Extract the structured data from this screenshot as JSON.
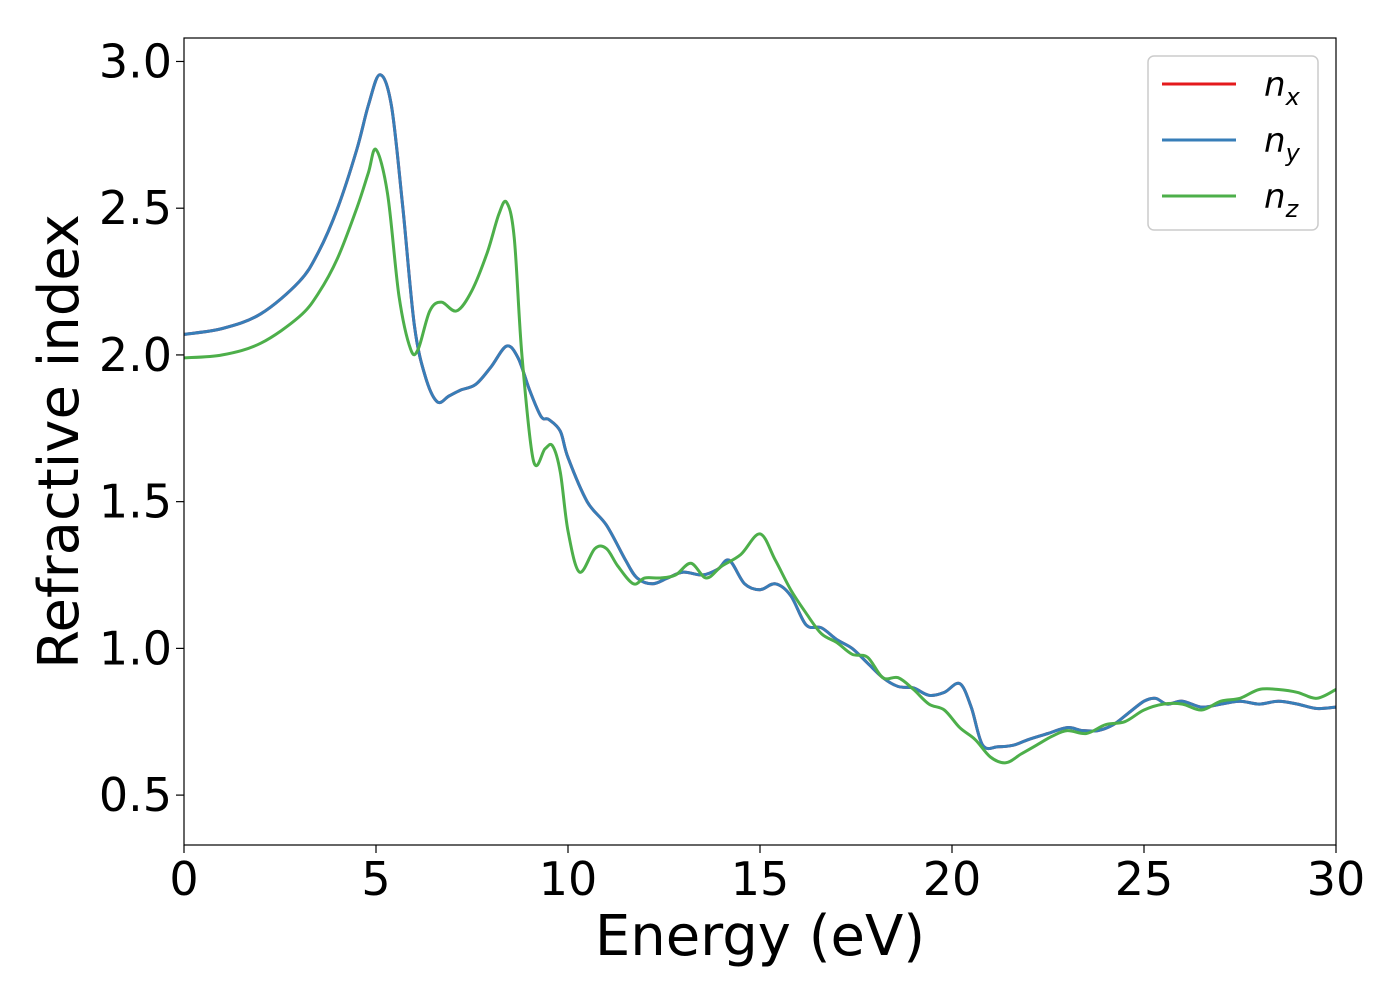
{
  "chart_data": {
    "type": "line",
    "xlabel": "Energy (eV)",
    "ylabel": "Refractive index",
    "xlim": [
      0,
      30
    ],
    "ylim": [
      0.33,
      3.08
    ],
    "xticks": [
      0,
      5,
      10,
      15,
      20,
      25,
      30
    ],
    "xtick_labels": [
      "0",
      "5",
      "10",
      "15",
      "20",
      "25",
      "30"
    ],
    "yticks": [
      0.5,
      1.0,
      1.5,
      2.0,
      2.5,
      3.0
    ],
    "ytick_labels": [
      "0.5",
      "1.0",
      "1.5",
      "2.0",
      "2.5",
      "3.0"
    ],
    "grid": false,
    "legend_position": "top-right",
    "series": [
      {
        "name": "n_x",
        "label_base": "n",
        "label_sub": "x",
        "color": "#e41a1c",
        "x": [
          0,
          1,
          2,
          3,
          3.5,
          4,
          4.5,
          4.8,
          5.1,
          5.4,
          5.7,
          6,
          6.3,
          6.6,
          6.9,
          7.2,
          7.6,
          8,
          8.4,
          8.7,
          9,
          9.3,
          9.5,
          9.8,
          10,
          10.5,
          11,
          11.5,
          11.8,
          12.2,
          12.6,
          13,
          13.5,
          13.9,
          14.2,
          14.6,
          15,
          15.4,
          15.8,
          16.2,
          16.6,
          17,
          17.4,
          17.8,
          18.2,
          18.6,
          19,
          19.4,
          19.8,
          20.2,
          20.5,
          20.8,
          21.2,
          21.6,
          22,
          22.5,
          23,
          23.4,
          23.8,
          24.2,
          24.6,
          25,
          25.3,
          25.6,
          26,
          26.5,
          27,
          27.5,
          28,
          28.5,
          29,
          29.5,
          30
        ],
        "y": [
          2.07,
          2.09,
          2.14,
          2.25,
          2.35,
          2.5,
          2.7,
          2.85,
          2.955,
          2.85,
          2.5,
          2.1,
          1.92,
          1.84,
          1.86,
          1.88,
          1.9,
          1.96,
          2.03,
          1.99,
          1.88,
          1.79,
          1.78,
          1.74,
          1.65,
          1.5,
          1.42,
          1.3,
          1.24,
          1.22,
          1.24,
          1.26,
          1.25,
          1.27,
          1.3,
          1.22,
          1.2,
          1.22,
          1.18,
          1.08,
          1.07,
          1.03,
          1.0,
          0.95,
          0.9,
          0.87,
          0.865,
          0.84,
          0.85,
          0.88,
          0.8,
          0.67,
          0.665,
          0.67,
          0.69,
          0.71,
          0.73,
          0.72,
          0.72,
          0.74,
          0.78,
          0.82,
          0.83,
          0.81,
          0.82,
          0.8,
          0.81,
          0.82,
          0.81,
          0.82,
          0.81,
          0.795,
          0.8
        ]
      },
      {
        "name": "n_y",
        "label_base": "n",
        "label_sub": "y",
        "color": "#377eb8",
        "x": [
          0,
          1,
          2,
          3,
          3.5,
          4,
          4.5,
          4.8,
          5.1,
          5.4,
          5.7,
          6,
          6.3,
          6.6,
          6.9,
          7.2,
          7.6,
          8,
          8.4,
          8.7,
          9,
          9.3,
          9.5,
          9.8,
          10,
          10.5,
          11,
          11.5,
          11.8,
          12.2,
          12.6,
          13,
          13.5,
          13.9,
          14.2,
          14.6,
          15,
          15.4,
          15.8,
          16.2,
          16.6,
          17,
          17.4,
          17.8,
          18.2,
          18.6,
          19,
          19.4,
          19.8,
          20.2,
          20.5,
          20.8,
          21.2,
          21.6,
          22,
          22.5,
          23,
          23.4,
          23.8,
          24.2,
          24.6,
          25,
          25.3,
          25.6,
          26,
          26.5,
          27,
          27.5,
          28,
          28.5,
          29,
          29.5,
          30
        ],
        "y": [
          2.07,
          2.09,
          2.14,
          2.25,
          2.35,
          2.5,
          2.7,
          2.85,
          2.955,
          2.85,
          2.5,
          2.1,
          1.92,
          1.84,
          1.86,
          1.88,
          1.9,
          1.96,
          2.03,
          1.99,
          1.88,
          1.79,
          1.78,
          1.74,
          1.65,
          1.5,
          1.42,
          1.3,
          1.24,
          1.22,
          1.24,
          1.26,
          1.25,
          1.27,
          1.3,
          1.22,
          1.2,
          1.22,
          1.18,
          1.08,
          1.07,
          1.03,
          1.0,
          0.95,
          0.9,
          0.87,
          0.865,
          0.84,
          0.85,
          0.88,
          0.8,
          0.67,
          0.665,
          0.67,
          0.69,
          0.71,
          0.73,
          0.72,
          0.72,
          0.74,
          0.78,
          0.82,
          0.83,
          0.81,
          0.82,
          0.8,
          0.81,
          0.82,
          0.81,
          0.82,
          0.81,
          0.795,
          0.8
        ]
      },
      {
        "name": "n_z",
        "label_base": "n",
        "label_sub": "z",
        "color": "#4daf4a",
        "x": [
          0,
          1,
          2,
          3,
          3.5,
          4,
          4.5,
          4.8,
          5,
          5.3,
          5.6,
          5.9,
          6.1,
          6.4,
          6.7,
          7.1,
          7.5,
          7.9,
          8.2,
          8.4,
          8.6,
          8.8,
          9.1,
          9.4,
          9.6,
          9.8,
          10,
          10.3,
          10.7,
          11,
          11.3,
          11.7,
          12,
          12.4,
          12.8,
          13.2,
          13.6,
          14,
          14.5,
          15,
          15.4,
          15.8,
          16.2,
          16.6,
          17,
          17.4,
          17.8,
          18.2,
          18.6,
          19,
          19.4,
          19.8,
          20.2,
          20.6,
          21,
          21.4,
          21.8,
          22.2,
          22.6,
          23,
          23.5,
          24,
          24.5,
          25,
          25.5,
          26,
          26.5,
          27,
          27.5,
          28,
          28.5,
          29,
          29.5,
          30
        ],
        "y": [
          1.99,
          2.0,
          2.04,
          2.13,
          2.21,
          2.33,
          2.5,
          2.62,
          2.7,
          2.55,
          2.2,
          2.02,
          2.02,
          2.15,
          2.18,
          2.15,
          2.22,
          2.35,
          2.48,
          2.52,
          2.4,
          2.0,
          1.64,
          1.68,
          1.69,
          1.6,
          1.4,
          1.26,
          1.34,
          1.34,
          1.28,
          1.22,
          1.24,
          1.24,
          1.25,
          1.29,
          1.24,
          1.28,
          1.32,
          1.39,
          1.3,
          1.2,
          1.12,
          1.05,
          1.02,
          0.98,
          0.97,
          0.9,
          0.9,
          0.86,
          0.81,
          0.79,
          0.73,
          0.69,
          0.63,
          0.61,
          0.64,
          0.67,
          0.7,
          0.72,
          0.71,
          0.74,
          0.75,
          0.79,
          0.81,
          0.81,
          0.79,
          0.82,
          0.83,
          0.86,
          0.86,
          0.85,
          0.83,
          0.86
        ]
      }
    ]
  }
}
